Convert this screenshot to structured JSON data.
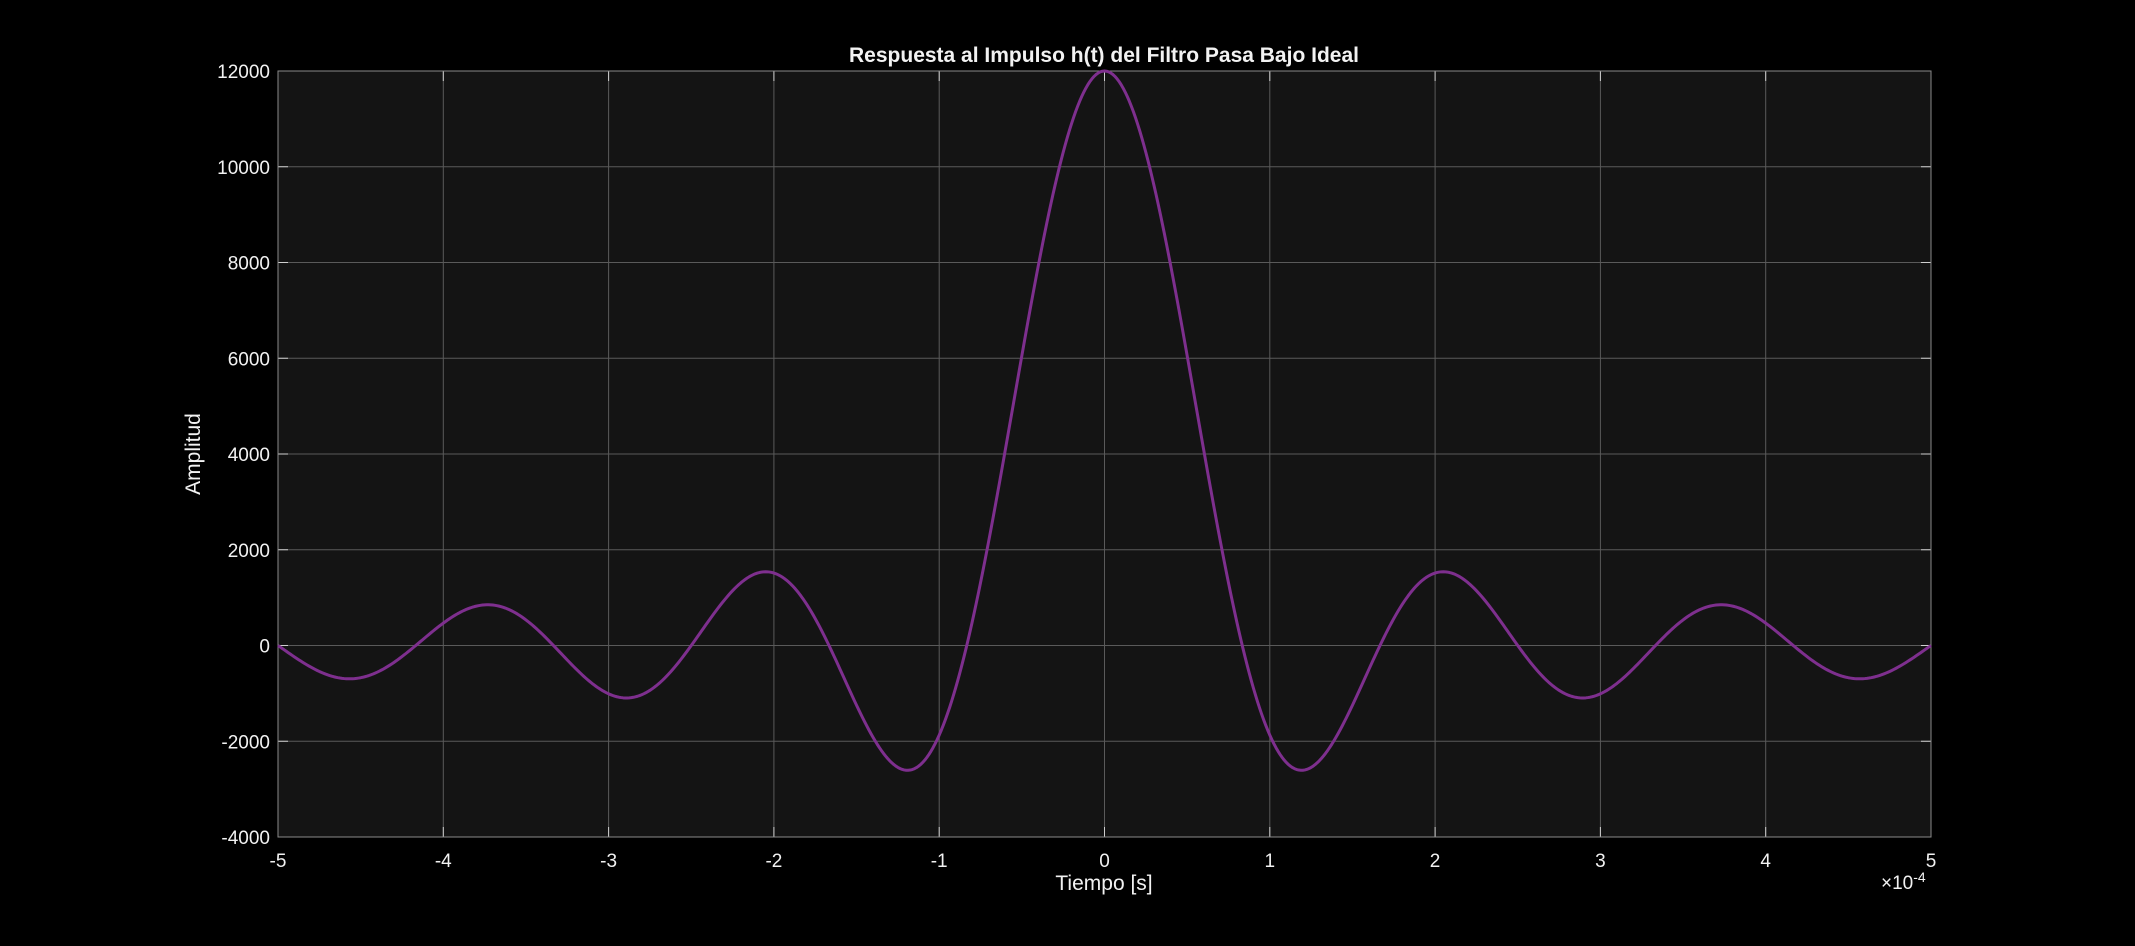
{
  "chart_data": {
    "type": "line",
    "title": "Respuesta al Impulso h(t) del Filtro Pasa Bajo Ideal",
    "xlabel": "Tiempo [s]",
    "ylabel": "Amplitud",
    "x_exponent_label": "×10",
    "x_exponent_power": "-4",
    "xlim": [
      -5,
      5
    ],
    "ylim": [
      -4000,
      12000
    ],
    "x_ticks": [
      -5,
      -4,
      -3,
      -2,
      -1,
      0,
      1,
      2,
      3,
      4,
      5
    ],
    "y_ticks": [
      -4000,
      -2000,
      0,
      2000,
      4000,
      6000,
      8000,
      10000,
      12000
    ],
    "x_tick_labels": [
      "-5",
      "-4",
      "-3",
      "-2",
      "-1",
      "0",
      "1",
      "2",
      "3",
      "4",
      "5"
    ],
    "y_tick_labels": [
      "-4000",
      "-2000",
      "0",
      "2000",
      "4000",
      "6000",
      "8000",
      "10000",
      "12000"
    ],
    "grid": true,
    "series": [
      {
        "color": "#7e2f8e",
        "function": "12000*sinc(0.12*t)",
        "x": [
          -5.0,
          -4.6,
          -4.2,
          -3.8,
          -3.6,
          -3.4,
          -3.0,
          -2.8,
          -2.6,
          -2.4,
          -2.2,
          -2.0,
          -1.8,
          -1.6,
          -1.4,
          -1.2,
          -1.0,
          -0.8,
          -0.6,
          -0.4,
          -0.2,
          0.0,
          0.2,
          0.4,
          0.6,
          0.8,
          1.0,
          1.2,
          1.4,
          1.6,
          1.8,
          2.0,
          2.2,
          2.4,
          2.6,
          2.8,
          3.0,
          3.4,
          3.6,
          3.8,
          4.2,
          4.6,
          5.0
        ],
        "y": [
          -60,
          -690,
          -400,
          850,
          690,
          220,
          -1060,
          -910,
          -120,
          880,
          1500,
          1560,
          860,
          -440,
          -1820,
          -2590,
          -1950,
          400,
          4070,
          8070,
          11000,
          12000,
          11000,
          8070,
          4070,
          400,
          -1950,
          -2590,
          -1820,
          -440,
          860,
          1560,
          1500,
          880,
          -120,
          -910,
          -1060,
          220,
          690,
          850,
          -400,
          -690,
          -60
        ]
      }
    ],
    "colors": {
      "background": "#000000",
      "axes_background": "#141414",
      "grid": "#5a5a5a",
      "text": "#f2f2f2",
      "line": "#7e2f8e"
    }
  }
}
